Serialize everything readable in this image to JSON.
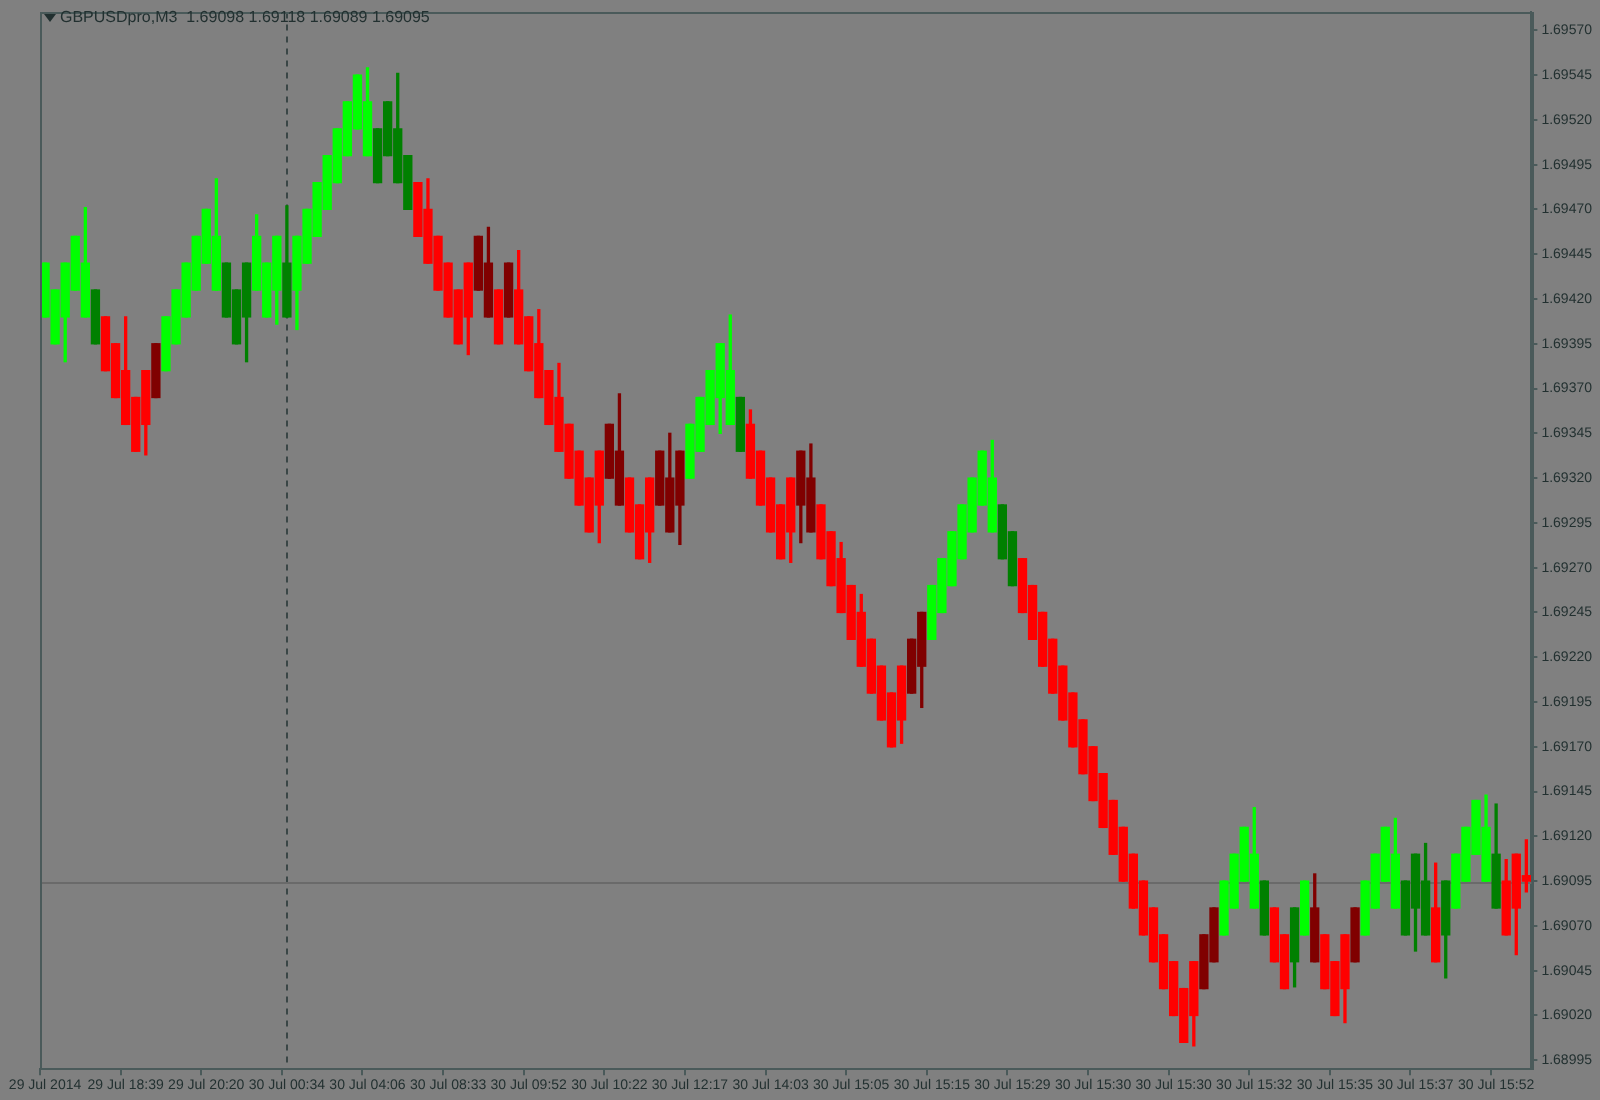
{
  "chart_data": {
    "type": "candlestick",
    "title": "GBPUSDpro,M3  1.69098 1.69118 1.69089 1.69095",
    "categories": [
      "29 Jul 2014",
      null,
      null,
      null,
      null,
      null,
      null,
      null,
      "29 Jul 18:39",
      null,
      null,
      null,
      null,
      null,
      null,
      null,
      "29 Jul 20:20",
      null,
      null,
      null,
      null,
      null,
      null,
      null,
      "30 Jul 00:34",
      null,
      null,
      null,
      null,
      null,
      null,
      null,
      "30 Jul 04:06",
      null,
      null,
      null,
      null,
      null,
      null,
      null,
      "30 Jul 08:33",
      null,
      null,
      null,
      null,
      null,
      null,
      null,
      "30 Jul 09:52",
      null,
      null,
      null,
      null,
      null,
      null,
      null,
      "30 Jul 10:22",
      null,
      null,
      null,
      null,
      null,
      null,
      null,
      "30 Jul 12:17",
      null,
      null,
      null,
      null,
      null,
      null,
      null,
      "30 Jul 14:03",
      null,
      null,
      null,
      null,
      null,
      null,
      null,
      "30 Jul 15:05",
      null,
      null,
      null,
      null,
      null,
      null,
      null,
      "30 Jul 15:15",
      null,
      null,
      null,
      null,
      null,
      null,
      null,
      "30 Jul 15:29",
      null,
      null,
      null,
      null,
      null,
      null,
      null,
      "30 Jul 15:30",
      null,
      null,
      null,
      null,
      null,
      null,
      null,
      "30 Jul 15:30",
      null,
      null,
      null,
      null,
      null,
      null,
      null,
      "30 Jul 15:32",
      null,
      null,
      null,
      null,
      null,
      null,
      null,
      "30 Jul 15:35",
      null,
      null,
      null,
      null,
      null,
      null,
      null,
      "30 Jul 15:37",
      null,
      null,
      null,
      null,
      null,
      null,
      null,
      "30 Jul 15:52",
      null,
      null,
      null
    ],
    "ohlc": [
      [
        1.6941,
        1.6944,
        1.6941,
        1.6944
      ],
      [
        1.69395,
        1.69425,
        1.69395,
        1.69425
      ],
      [
        1.6941,
        1.6944,
        1.69385,
        1.6944
      ],
      [
        1.69425,
        1.69455,
        1.69425,
        1.69455
      ],
      [
        1.6941,
        1.69471,
        1.6941,
        1.6944
      ],
      [
        1.69395,
        1.69425,
        1.69395,
        1.69425
      ],
      [
        1.6941,
        1.6941,
        1.6938,
        1.6938
      ],
      [
        1.69395,
        1.69395,
        1.69365,
        1.69365
      ],
      [
        1.6938,
        1.6941,
        1.6935,
        1.6935
      ],
      [
        1.69365,
        1.69365,
        1.69335,
        1.69335
      ],
      [
        1.6938,
        1.6938,
        1.69333,
        1.6935
      ],
      [
        1.69395,
        1.69395,
        1.69365,
        1.69365
      ],
      [
        1.6938,
        1.6941,
        1.6938,
        1.6941
      ],
      [
        1.69395,
        1.69425,
        1.69395,
        1.69425
      ],
      [
        1.6941,
        1.6944,
        1.6941,
        1.6944
      ],
      [
        1.69425,
        1.69455,
        1.69425,
        1.69455
      ],
      [
        1.6944,
        1.6947,
        1.6944,
        1.6947
      ],
      [
        1.69425,
        1.69487,
        1.69425,
        1.69455
      ],
      [
        1.6941,
        1.6944,
        1.6941,
        1.6944
      ],
      [
        1.69395,
        1.69425,
        1.69395,
        1.69425
      ],
      [
        1.6941,
        1.6944,
        1.69385,
        1.6944
      ],
      [
        1.69425,
        1.69467,
        1.69425,
        1.69455
      ],
      [
        1.6941,
        1.6944,
        1.6941,
        1.6944
      ],
      [
        1.69425,
        1.69455,
        1.69406,
        1.69455
      ],
      [
        1.6941,
        1.69472,
        1.6941,
        1.6944
      ],
      [
        1.69425,
        1.69455,
        1.69403,
        1.69455
      ],
      [
        1.6944,
        1.6947,
        1.6944,
        1.6947
      ],
      [
        1.69455,
        1.69485,
        1.69455,
        1.69485
      ],
      [
        1.6947,
        1.695,
        1.6947,
        1.695
      ],
      [
        1.69485,
        1.69515,
        1.69485,
        1.69515
      ],
      [
        1.695,
        1.6953,
        1.695,
        1.6953
      ],
      [
        1.69515,
        1.69545,
        1.69515,
        1.69545
      ],
      [
        1.695,
        1.69549,
        1.695,
        1.6953
      ],
      [
        1.69485,
        1.69515,
        1.69485,
        1.69515
      ],
      [
        1.695,
        1.6953,
        1.695,
        1.6953
      ],
      [
        1.69485,
        1.69546,
        1.69485,
        1.69515
      ],
      [
        1.6947,
        1.695,
        1.6947,
        1.695
      ],
      [
        1.69485,
        1.69485,
        1.69455,
        1.69455
      ],
      [
        1.6947,
        1.69487,
        1.6944,
        1.6944
      ],
      [
        1.69455,
        1.69455,
        1.69425,
        1.69425
      ],
      [
        1.6944,
        1.6944,
        1.6941,
        1.6941
      ],
      [
        1.69425,
        1.69425,
        1.69395,
        1.69395
      ],
      [
        1.6944,
        1.6944,
        1.69389,
        1.6941
      ],
      [
        1.69455,
        1.69455,
        1.69425,
        1.69425
      ],
      [
        1.6944,
        1.6946,
        1.6941,
        1.6941
      ],
      [
        1.69425,
        1.69425,
        1.69395,
        1.69395
      ],
      [
        1.6944,
        1.6944,
        1.6941,
        1.6941
      ],
      [
        1.69425,
        1.69447,
        1.69395,
        1.69395
      ],
      [
        1.6941,
        1.6941,
        1.6938,
        1.6938
      ],
      [
        1.69395,
        1.69414,
        1.69365,
        1.69365
      ],
      [
        1.6938,
        1.6938,
        1.6935,
        1.6935
      ],
      [
        1.69365,
        1.69384,
        1.69335,
        1.69335
      ],
      [
        1.6935,
        1.6935,
        1.6932,
        1.6932
      ],
      [
        1.69335,
        1.69335,
        1.69305,
        1.69305
      ],
      [
        1.6932,
        1.6932,
        1.6929,
        1.6929
      ],
      [
        1.69335,
        1.69335,
        1.69284,
        1.69305
      ],
      [
        1.6935,
        1.6935,
        1.6932,
        1.6932
      ],
      [
        1.69335,
        1.69367,
        1.69305,
        1.69305
      ],
      [
        1.6932,
        1.6932,
        1.6929,
        1.6929
      ],
      [
        1.69305,
        1.69305,
        1.69275,
        1.69275
      ],
      [
        1.6932,
        1.6932,
        1.69273,
        1.6929
      ],
      [
        1.69335,
        1.69335,
        1.69305,
        1.69305
      ],
      [
        1.6932,
        1.69345,
        1.6929,
        1.6929
      ],
      [
        1.69335,
        1.69335,
        1.69283,
        1.69305
      ],
      [
        1.6932,
        1.6935,
        1.6932,
        1.6935
      ],
      [
        1.69335,
        1.69365,
        1.69335,
        1.69365
      ],
      [
        1.6935,
        1.6938,
        1.6935,
        1.6938
      ],
      [
        1.69365,
        1.69395,
        1.69345,
        1.69395
      ],
      [
        1.6935,
        1.69411,
        1.6935,
        1.6938
      ],
      [
        1.69335,
        1.69365,
        1.69335,
        1.69365
      ],
      [
        1.6935,
        1.69358,
        1.6932,
        1.6932
      ],
      [
        1.69335,
        1.69335,
        1.69305,
        1.69305
      ],
      [
        1.6932,
        1.6932,
        1.6929,
        1.6929
      ],
      [
        1.69305,
        1.69305,
        1.69275,
        1.69275
      ],
      [
        1.6932,
        1.6932,
        1.69273,
        1.6929
      ],
      [
        1.69335,
        1.69335,
        1.69284,
        1.69305
      ],
      [
        1.6932,
        1.69339,
        1.6929,
        1.6929
      ],
      [
        1.69305,
        1.69305,
        1.69275,
        1.69275
      ],
      [
        1.6929,
        1.6929,
        1.6926,
        1.6926
      ],
      [
        1.69275,
        1.69284,
        1.69245,
        1.69245
      ],
      [
        1.6926,
        1.6926,
        1.6923,
        1.6923
      ],
      [
        1.69245,
        1.69255,
        1.69215,
        1.69215
      ],
      [
        1.6923,
        1.6923,
        1.692,
        1.692
      ],
      [
        1.69215,
        1.69215,
        1.69185,
        1.69185
      ],
      [
        1.692,
        1.692,
        1.6917,
        1.6917
      ],
      [
        1.69215,
        1.69215,
        1.69172,
        1.69185
      ],
      [
        1.6923,
        1.6923,
        1.692,
        1.692
      ],
      [
        1.69245,
        1.69245,
        1.69192,
        1.69215
      ],
      [
        1.6923,
        1.6926,
        1.6923,
        1.6926
      ],
      [
        1.69245,
        1.69275,
        1.69245,
        1.69275
      ],
      [
        1.6926,
        1.6929,
        1.6926,
        1.6929
      ],
      [
        1.69275,
        1.69305,
        1.69275,
        1.69305
      ],
      [
        1.6929,
        1.6932,
        1.6929,
        1.6932
      ],
      [
        1.69305,
        1.69335,
        1.69305,
        1.69335
      ],
      [
        1.6929,
        1.69341,
        1.6929,
        1.6932
      ],
      [
        1.69275,
        1.69305,
        1.69275,
        1.69305
      ],
      [
        1.6926,
        1.6929,
        1.6926,
        1.6929
      ],
      [
        1.69275,
        1.69275,
        1.69245,
        1.69245
      ],
      [
        1.6926,
        1.6926,
        1.6923,
        1.6923
      ],
      [
        1.69245,
        1.69245,
        1.69215,
        1.69215
      ],
      [
        1.6923,
        1.6923,
        1.692,
        1.692
      ],
      [
        1.69215,
        1.69215,
        1.69185,
        1.69185
      ],
      [
        1.692,
        1.692,
        1.6917,
        1.6917
      ],
      [
        1.69185,
        1.69185,
        1.69155,
        1.69155
      ],
      [
        1.6917,
        1.6917,
        1.6914,
        1.6914
      ],
      [
        1.69155,
        1.69155,
        1.69125,
        1.69125
      ],
      [
        1.6914,
        1.6914,
        1.6911,
        1.6911
      ],
      [
        1.69125,
        1.69125,
        1.69095,
        1.69095
      ],
      [
        1.6911,
        1.6911,
        1.6908,
        1.6908
      ],
      [
        1.69095,
        1.69095,
        1.69065,
        1.69065
      ],
      [
        1.6908,
        1.6908,
        1.6905,
        1.6905
      ],
      [
        1.69065,
        1.69065,
        1.69035,
        1.69035
      ],
      [
        1.6905,
        1.6905,
        1.6902,
        1.6902
      ],
      [
        1.69035,
        1.69035,
        1.69005,
        1.69005
      ],
      [
        1.6905,
        1.6905,
        1.69003,
        1.6902
      ],
      [
        1.69065,
        1.69065,
        1.69035,
        1.69035
      ],
      [
        1.6908,
        1.6908,
        1.6905,
        1.6905
      ],
      [
        1.69065,
        1.69095,
        1.69065,
        1.69095
      ],
      [
        1.6908,
        1.6911,
        1.6908,
        1.6911
      ],
      [
        1.69095,
        1.69125,
        1.69095,
        1.69125
      ],
      [
        1.6908,
        1.69136,
        1.6908,
        1.6911
      ],
      [
        1.69065,
        1.69095,
        1.69065,
        1.69095
      ],
      [
        1.6908,
        1.6908,
        1.6905,
        1.6905
      ],
      [
        1.69065,
        1.69065,
        1.69035,
        1.69035
      ],
      [
        1.6905,
        1.6908,
        1.69036,
        1.6908
      ],
      [
        1.69065,
        1.69095,
        1.69065,
        1.69095
      ],
      [
        1.6908,
        1.69099,
        1.6905,
        1.6905
      ],
      [
        1.69065,
        1.69065,
        1.69035,
        1.69035
      ],
      [
        1.6905,
        1.6905,
        1.6902,
        1.6902
      ],
      [
        1.69065,
        1.69065,
        1.69016,
        1.69035
      ],
      [
        1.6908,
        1.6908,
        1.6905,
        1.6905
      ],
      [
        1.69065,
        1.69095,
        1.69065,
        1.69095
      ],
      [
        1.6908,
        1.6911,
        1.6908,
        1.6911
      ],
      [
        1.69095,
        1.69125,
        1.69095,
        1.69125
      ],
      [
        1.6908,
        1.6913,
        1.6908,
        1.6911
      ],
      [
        1.69065,
        1.69095,
        1.69065,
        1.69095
      ],
      [
        1.6908,
        1.6911,
        1.69056,
        1.6911
      ],
      [
        1.69065,
        1.69116,
        1.69065,
        1.69095
      ],
      [
        1.6908,
        1.69105,
        1.6905,
        1.6905
      ],
      [
        1.69065,
        1.69095,
        1.69041,
        1.69095
      ],
      [
        1.6908,
        1.6911,
        1.6908,
        1.6911
      ],
      [
        1.69095,
        1.69125,
        1.69095,
        1.69125
      ],
      [
        1.6911,
        1.6914,
        1.6911,
        1.6914
      ],
      [
        1.69095,
        1.69143,
        1.69095,
        1.69125
      ],
      [
        1.6908,
        1.69138,
        1.6908,
        1.6911
      ],
      [
        1.69095,
        1.69107,
        1.69065,
        1.69065
      ],
      [
        1.6911,
        1.6911,
        1.69054,
        1.6908
      ],
      [
        1.69098,
        1.69118,
        1.69089,
        1.69095
      ]
    ],
    "colors": [
      "#00ff00",
      "#00ff00",
      "#00ff00",
      "#00ff00",
      "#00ff00",
      "#008000",
      "#ff0000",
      "#ff0000",
      "#ff0000",
      "#ff0000",
      "#ff0000",
      "#800000",
      "#00ff00",
      "#00ff00",
      "#00ff00",
      "#00ff00",
      "#00ff00",
      "#00ff00",
      "#008000",
      "#008000",
      "#008000",
      "#00ff00",
      "#00ff00",
      "#00ff00",
      "#008000",
      "#00ff00",
      "#00ff00",
      "#00ff00",
      "#00ff00",
      "#00ff00",
      "#00ff00",
      "#00ff00",
      "#00ff00",
      "#008000",
      "#008000",
      "#008000",
      "#008000",
      "#ff0000",
      "#ff0000",
      "#ff0000",
      "#ff0000",
      "#ff0000",
      "#ff0000",
      "#800000",
      "#800000",
      "#ff0000",
      "#800000",
      "#ff0000",
      "#ff0000",
      "#ff0000",
      "#ff0000",
      "#ff0000",
      "#ff0000",
      "#ff0000",
      "#ff0000",
      "#ff0000",
      "#800000",
      "#800000",
      "#ff0000",
      "#ff0000",
      "#ff0000",
      "#800000",
      "#800000",
      "#800000",
      "#00ff00",
      "#00ff00",
      "#00ff00",
      "#00ff00",
      "#00ff00",
      "#008000",
      "#ff0000",
      "#ff0000",
      "#ff0000",
      "#ff0000",
      "#ff0000",
      "#800000",
      "#800000",
      "#ff0000",
      "#ff0000",
      "#ff0000",
      "#ff0000",
      "#ff0000",
      "#ff0000",
      "#ff0000",
      "#ff0000",
      "#ff0000",
      "#800000",
      "#800000",
      "#00ff00",
      "#00ff00",
      "#00ff00",
      "#00ff00",
      "#00ff00",
      "#00ff00",
      "#00ff00",
      "#008000",
      "#008000",
      "#ff0000",
      "#ff0000",
      "#ff0000",
      "#ff0000",
      "#ff0000",
      "#ff0000",
      "#ff0000",
      "#ff0000",
      "#ff0000",
      "#ff0000",
      "#ff0000",
      "#ff0000",
      "#ff0000",
      "#ff0000",
      "#ff0000",
      "#ff0000",
      "#ff0000",
      "#ff0000",
      "#800000",
      "#800000",
      "#00ff00",
      "#00ff00",
      "#00ff00",
      "#00ff00",
      "#008000",
      "#ff0000",
      "#ff0000",
      "#008000",
      "#00ff00",
      "#800000",
      "#ff0000",
      "#ff0000",
      "#ff0000",
      "#800000",
      "#00ff00",
      "#00ff00",
      "#00ff00",
      "#00ff00",
      "#008000",
      "#008000",
      "#008000",
      "#ff0000",
      "#008000",
      "#00ff00",
      "#00ff00",
      "#00ff00",
      "#00ff00",
      "#008000",
      "#ff0000",
      "#ff0000",
      "#ff0000"
    ],
    "ylim": [
      1.6899,
      1.6958
    ],
    "yticks": [
      {
        "value": 1.6957,
        "label": "1.69570"
      },
      1.69545,
      {
        "value": 1.6952,
        "label": "1.69520"
      },
      1.69495,
      {
        "value": 1.6947,
        "label": "1.69470"
      },
      1.69445,
      {
        "value": 1.6942,
        "label": "1.69420"
      },
      1.69395,
      {
        "value": 1.6937,
        "label": "1.69370"
      },
      1.69345,
      {
        "value": 1.6932,
        "label": "1.69320"
      },
      1.69295,
      {
        "value": 1.6927,
        "label": "1.69270"
      },
      1.69245,
      {
        "value": 1.6922,
        "label": "1.69220"
      },
      1.69195,
      {
        "value": 1.6917,
        "label": "1.69170"
      },
      1.69145,
      {
        "value": 1.6912,
        "label": "1.69120"
      },
      1.69095,
      {
        "value": 1.6907,
        "label": "1.69070"
      },
      1.69045,
      {
        "value": 1.6902,
        "label": "1.69020"
      },
      1.68995
    ],
    "ref_lines": [
      {
        "axis": "x",
        "value": "30 Jul 00:34",
        "color": "#3a4646",
        "line_style": "dashed"
      },
      {
        "axis": "y",
        "value": 1.69095,
        "color": "#6a6a6a",
        "line_style": "solid"
      }
    ],
    "grid": false,
    "legend": false
  }
}
